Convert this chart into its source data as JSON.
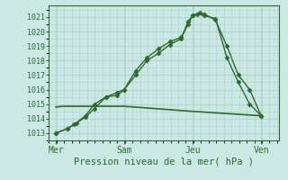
{
  "background_color": "#cce8e5",
  "grid_color": "#aacfcc",
  "line_color": "#2d6a2d",
  "title": "Pression niveau de la mer( hPa )",
  "xlabel_days": [
    "Mer",
    "Sam",
    "Jeu",
    "Ven"
  ],
  "ylim": [
    1012.5,
    1021.8
  ],
  "xlim": [
    -0.3,
    9.8
  ],
  "yticks": [
    1013,
    1014,
    1015,
    1016,
    1017,
    1018,
    1019,
    1020,
    1021
  ],
  "xtick_positions": [
    0.0,
    3.0,
    6.0,
    9.0
  ],
  "series1_x": [
    0.0,
    0.5,
    0.8,
    1.3,
    1.7,
    2.2,
    2.7,
    3.0,
    3.5,
    4.0,
    4.5,
    5.0,
    5.5,
    5.8,
    6.0,
    6.3,
    6.5,
    7.0,
    7.5,
    8.0,
    8.5,
    9.0
  ],
  "series1_y": [
    1013.0,
    1013.3,
    1013.6,
    1014.1,
    1014.7,
    1015.5,
    1015.6,
    1016.0,
    1017.3,
    1018.2,
    1018.8,
    1019.3,
    1019.6,
    1020.5,
    1021.1,
    1021.3,
    1021.2,
    1020.8,
    1019.0,
    1017.0,
    1016.0,
    1014.2
  ],
  "series2_x": [
    0.0,
    0.5,
    0.9,
    1.3,
    1.7,
    2.2,
    2.7,
    3.0,
    3.5,
    4.0,
    4.5,
    5.0,
    5.5,
    5.8,
    6.0,
    6.2,
    6.5,
    7.0,
    7.5,
    8.0,
    8.5,
    9.0
  ],
  "series2_y": [
    1013.0,
    1013.3,
    1013.7,
    1014.2,
    1015.0,
    1015.5,
    1015.8,
    1016.0,
    1017.0,
    1018.0,
    1018.5,
    1019.1,
    1019.5,
    1020.7,
    1021.1,
    1021.2,
    1021.1,
    1020.9,
    1018.2,
    1016.5,
    1015.0,
    1014.2
  ],
  "series3_x": [
    0.0,
    0.3,
    1.3,
    1.8,
    2.2,
    2.6,
    3.0,
    6.0,
    6.5,
    9.0
  ],
  "series3_y": [
    1014.8,
    1014.85,
    1014.85,
    1014.85,
    1014.85,
    1014.85,
    1014.85,
    1014.5,
    1014.45,
    1014.2
  ],
  "marker_size": 2.5,
  "linewidth": 1.0
}
